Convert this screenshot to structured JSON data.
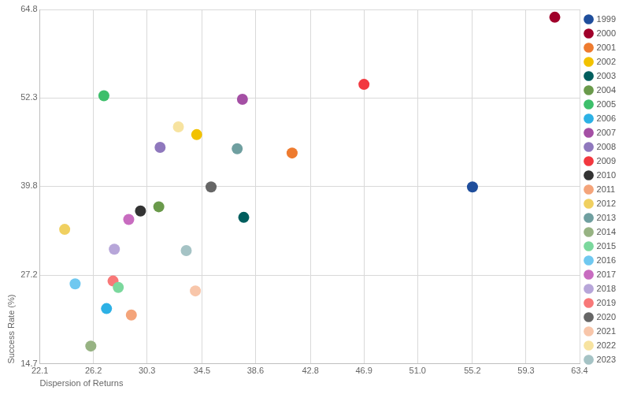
{
  "chart_data": {
    "type": "scatter",
    "x_label": "Dispersion of Returns",
    "y_label": "Success Rate (%)",
    "xlim": [
      22.1,
      63.4
    ],
    "xticks": [
      22.1,
      26.2,
      30.3,
      34.5,
      38.6,
      42.8,
      46.9,
      {
        "value": 51,
        "label": "51.0"
      },
      55.2,
      59.3,
      63.4
    ],
    "ylim": [
      14.7,
      64.8
    ],
    "yticks": [
      14.7,
      27.2,
      39.8,
      52.3,
      64.8
    ],
    "grid": true,
    "legend": "right",
    "marker": "circle",
    "series": [
      {
        "name": "1999",
        "color": "#1f4e9c",
        "x": [
          55.2
        ],
        "values": [
          39.7
        ]
      },
      {
        "name": "2000",
        "color": "#a0002a",
        "x": [
          61.5
        ],
        "values": [
          63.7
        ]
      },
      {
        "name": "2001",
        "color": "#ee7b2f",
        "x": [
          41.4
        ],
        "values": [
          44.5
        ]
      },
      {
        "name": "2002",
        "color": "#f2c200",
        "x": [
          34.1
        ],
        "values": [
          47.1
        ]
      },
      {
        "name": "2003",
        "color": "#005e5e",
        "x": [
          37.7
        ],
        "values": [
          35.4
        ]
      },
      {
        "name": "2004",
        "color": "#6a9a4b",
        "x": [
          31.2
        ],
        "values": [
          36.9
        ]
      },
      {
        "name": "2005",
        "color": "#3dbf6b",
        "x": [
          27.0
        ],
        "values": [
          52.6
        ]
      },
      {
        "name": "2006",
        "color": "#2db1e5",
        "x": [
          27.2
        ],
        "values": [
          22.5
        ]
      },
      {
        "name": "2007",
        "color": "#a44fa4",
        "x": [
          37.6
        ],
        "values": [
          52.1
        ]
      },
      {
        "name": "2008",
        "color": "#8f78bd",
        "x": [
          31.3
        ],
        "values": [
          45.3
        ]
      },
      {
        "name": "2009",
        "color": "#f2383f",
        "x": [
          46.9
        ],
        "values": [
          54.2
        ]
      },
      {
        "name": "2010",
        "color": "#333333",
        "x": [
          29.8
        ],
        "values": [
          36.3
        ]
      },
      {
        "name": "2011",
        "color": "#f4a47a",
        "x": [
          29.1
        ],
        "values": [
          21.6
        ]
      },
      {
        "name": "2012",
        "color": "#f0d060",
        "x": [
          24.0
        ],
        "values": [
          33.7
        ]
      },
      {
        "name": "2013",
        "color": "#6f9fa0",
        "x": [
          37.2
        ],
        "values": [
          45.1
        ]
      },
      {
        "name": "2014",
        "color": "#97b383",
        "x": [
          26.0
        ],
        "values": [
          17.2
        ]
      },
      {
        "name": "2015",
        "color": "#7bd89d",
        "x": [
          28.1
        ],
        "values": [
          25.5
        ]
      },
      {
        "name": "2016",
        "color": "#6fc8f0",
        "x": [
          24.8
        ],
        "values": [
          26.0
        ]
      },
      {
        "name": "2017",
        "color": "#c86cc0",
        "x": [
          28.9
        ],
        "values": [
          35.1
        ]
      },
      {
        "name": "2018",
        "color": "#b7a6d9",
        "x": [
          27.8
        ],
        "values": [
          30.9
        ]
      },
      {
        "name": "2019",
        "color": "#f87878",
        "x": [
          27.7
        ],
        "values": [
          26.4
        ]
      },
      {
        "name": "2020",
        "color": "#666666",
        "x": [
          35.2
        ],
        "values": [
          39.7
        ]
      },
      {
        "name": "2021",
        "color": "#f8c6aa",
        "x": [
          34.0
        ],
        "values": [
          25.0
        ]
      },
      {
        "name": "2022",
        "color": "#f7e3a0",
        "x": [
          32.7
        ],
        "values": [
          48.2
        ]
      },
      {
        "name": "2023",
        "color": "#a5c3c5",
        "x": [
          33.3
        ],
        "values": [
          30.7
        ]
      }
    ]
  }
}
